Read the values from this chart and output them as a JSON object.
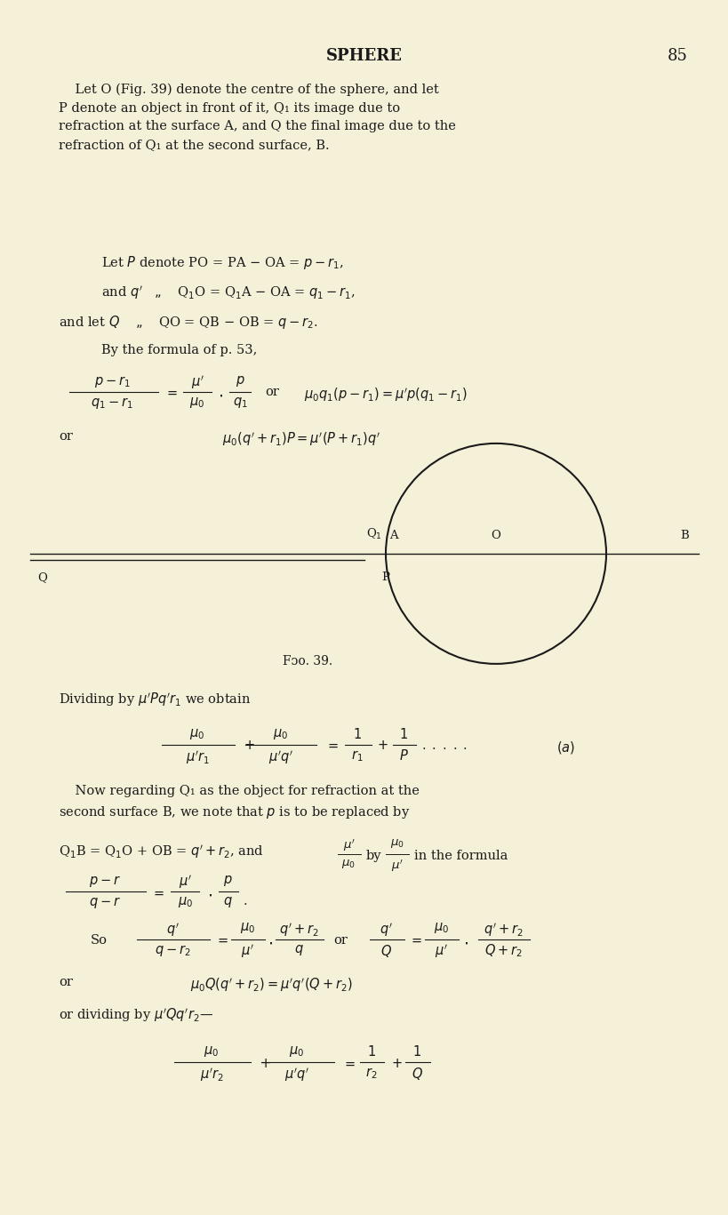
{
  "bg_color": "#f5f0d8",
  "text_color": "#1a1a1a",
  "title": "SPHERE",
  "page_number": "85"
}
